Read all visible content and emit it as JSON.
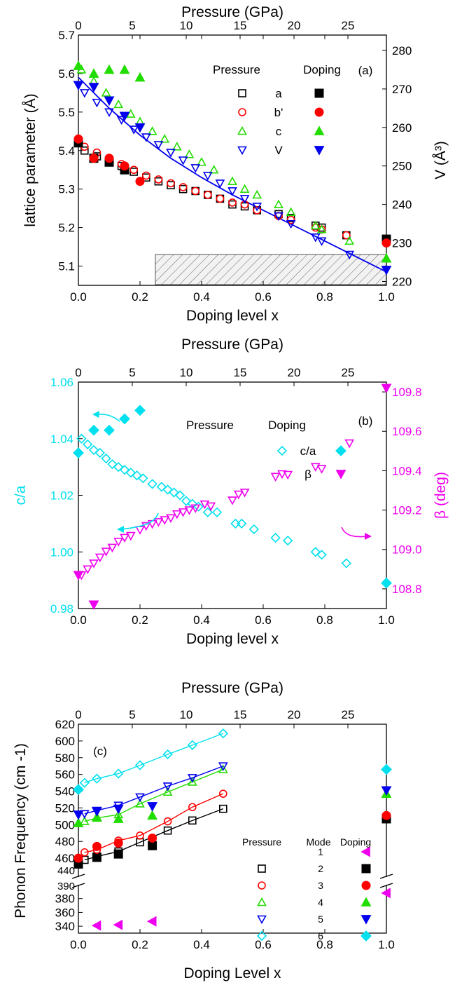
{
  "chart_data": [
    {
      "type": "scatter",
      "panel_label": "(a)",
      "xlabel": "Doping level x",
      "x2label": "Pressure (GPa)",
      "ylabel": "lattice parameter (Å)",
      "y2label": "V (Å³)",
      "xlim": [
        0,
        1.0
      ],
      "x2lim": [
        0,
        28.57
      ],
      "ylim": [
        5.05,
        5.7
      ],
      "y2lim": [
        219,
        284
      ],
      "xticks": [
        "0.0",
        "0.2",
        "0.4",
        "0.6",
        "0.8",
        "1.0"
      ],
      "x2ticks": [
        "0",
        "5",
        "10",
        "15",
        "20",
        "25"
      ],
      "yticks": [
        "5.1",
        "5.2",
        "5.3",
        "5.4",
        "5.5",
        "5.6",
        "5.7"
      ],
      "y2ticks": [
        "220",
        "230",
        "240",
        "250",
        "260",
        "270",
        "280"
      ],
      "legend": {
        "header_pressure": "Pressure",
        "header_doping": "Doping",
        "labels": [
          "a",
          "b'",
          "c",
          "V"
        ]
      },
      "hatched_region_x": [
        0.25,
        1.0
      ],
      "series": [
        {
          "name": "a",
          "method": "Pressure",
          "marker": "square",
          "filled": false,
          "color": "#000000",
          "axis": "left",
          "x": [
            0.02,
            0.06,
            0.1,
            0.14,
            0.18,
            0.22,
            0.26,
            0.3,
            0.34,
            0.38,
            0.42,
            0.46,
            0.5,
            0.54,
            0.58,
            0.65,
            0.69,
            0.77,
            0.79,
            0.87
          ],
          "y": [
            5.4,
            5.385,
            5.37,
            5.36,
            5.345,
            5.33,
            5.32,
            5.31,
            5.3,
            5.295,
            5.285,
            5.275,
            5.26,
            5.255,
            5.245,
            5.235,
            5.225,
            5.205,
            5.2,
            5.18
          ]
        },
        {
          "name": "b'",
          "method": "Pressure",
          "marker": "circle",
          "filled": false,
          "color": "#ff0000",
          "axis": "left",
          "x": [
            0.02,
            0.06,
            0.1,
            0.14,
            0.18,
            0.22,
            0.26,
            0.3,
            0.34,
            0.38,
            0.42,
            0.46,
            0.5,
            0.54,
            0.58,
            0.65,
            0.69,
            0.77,
            0.79,
            0.87
          ],
          "y": [
            5.41,
            5.395,
            5.38,
            5.365,
            5.35,
            5.335,
            5.325,
            5.315,
            5.305,
            5.295,
            5.285,
            5.275,
            5.265,
            5.26,
            5.245,
            5.23,
            5.22,
            5.2,
            5.195,
            5.18
          ]
        },
        {
          "name": "c",
          "method": "Pressure",
          "marker": "triangle-up",
          "filled": false,
          "color": "#22dd00",
          "axis": "left",
          "x": [
            0.01,
            0.05,
            0.09,
            0.13,
            0.17,
            0.2,
            0.24,
            0.28,
            0.32,
            0.36,
            0.4,
            0.44,
            0.5,
            0.54,
            0.58,
            0.65,
            0.69,
            0.77,
            0.79,
            0.88
          ],
          "y": [
            5.61,
            5.58,
            5.55,
            5.52,
            5.495,
            5.475,
            5.45,
            5.43,
            5.41,
            5.39,
            5.37,
            5.35,
            5.32,
            5.3,
            5.285,
            5.26,
            5.24,
            5.205,
            5.195,
            5.165
          ]
        },
        {
          "name": "V",
          "method": "Pressure",
          "marker": "triangle-down",
          "filled": false,
          "color": "#0000ee",
          "axis": "right",
          "x": [
            0.02,
            0.06,
            0.1,
            0.14,
            0.18,
            0.22,
            0.26,
            0.3,
            0.34,
            0.38,
            0.42,
            0.46,
            0.5,
            0.54,
            0.58,
            0.65,
            0.69,
            0.77,
            0.79,
            0.88
          ],
          "y": [
            269,
            266.5,
            264,
            262,
            259.5,
            257.5,
            255.5,
            253.5,
            251.5,
            249.5,
            247.5,
            245.5,
            243.5,
            241.5,
            239.5,
            237,
            235,
            231.5,
            230.5,
            227
          ]
        },
        {
          "name": "a",
          "method": "Doping",
          "marker": "square",
          "filled": true,
          "color": "#000000",
          "axis": "left",
          "x": [
            0.0,
            0.05,
            0.1,
            0.15,
            1.0
          ],
          "y": [
            5.42,
            5.38,
            5.37,
            5.35,
            5.17
          ]
        },
        {
          "name": "b'",
          "method": "Doping",
          "marker": "circle",
          "filled": true,
          "color": "#ff0000",
          "axis": "left",
          "x": [
            0.0,
            0.05,
            0.1,
            0.15,
            0.2,
            1.0
          ],
          "y": [
            5.43,
            5.38,
            5.38,
            5.36,
            5.32,
            5.16
          ]
        },
        {
          "name": "c",
          "method": "Doping",
          "marker": "triangle-up",
          "filled": true,
          "color": "#22dd00",
          "axis": "left",
          "x": [
            0.0,
            0.05,
            0.1,
            0.15,
            0.2,
            1.0
          ],
          "y": [
            5.62,
            5.6,
            5.61,
            5.61,
            5.59,
            5.12
          ]
        },
        {
          "name": "V",
          "method": "Doping",
          "marker": "triangle-down",
          "filled": true,
          "color": "#0000ee",
          "axis": "right",
          "x": [
            0.0,
            0.05,
            0.1,
            0.15,
            0.2,
            1.0
          ],
          "y": [
            271,
            270.5,
            267,
            263,
            260,
            223
          ]
        }
      ],
      "fit_line": {
        "color": "#0000ee",
        "axis": "right",
        "x": [
          0.0,
          0.1,
          0.2,
          0.3,
          0.4,
          0.5,
          0.6,
          0.7,
          0.8,
          0.9,
          1.0
        ],
        "y": [
          273,
          265,
          258,
          252,
          247,
          242.5,
          238.5,
          234.5,
          230.5,
          226.5,
          222.5
        ]
      },
      "legend_placement": "top-right",
      "grid": false
    },
    {
      "type": "scatter",
      "panel_label": "(b)",
      "xlabel": "Doping level x",
      "x2label": "Pressure (GPa)",
      "ylabel": "c/a",
      "y2label": "β (deg)",
      "xlim": [
        0,
        1.0
      ],
      "x2lim": [
        0,
        28.57
      ],
      "ylim": [
        0.98,
        1.06
      ],
      "y2lim": [
        108.7,
        109.85
      ],
      "xticks": [
        "0.0",
        "0.2",
        "0.4",
        "0.6",
        "0.8",
        "1.0"
      ],
      "x2ticks": [
        "0",
        "5",
        "10",
        "15",
        "20",
        "25"
      ],
      "yticks": [
        "0.98",
        "1.00",
        "1.02",
        "1.04",
        "1.06"
      ],
      "y2ticks": [
        "108.8",
        "109.0",
        "109.2",
        "109.4",
        "109.6",
        "109.8"
      ],
      "legend": {
        "header_pressure": "Pressure",
        "header_doping": "Doping",
        "labels": [
          "c/a",
          "β"
        ]
      },
      "series": [
        {
          "name": "c/a",
          "method": "Pressure",
          "marker": "diamond",
          "filled": false,
          "color": "#00e0ee",
          "axis": "left",
          "x": [
            0.01,
            0.03,
            0.05,
            0.07,
            0.09,
            0.11,
            0.13,
            0.15,
            0.17,
            0.19,
            0.21,
            0.24,
            0.27,
            0.29,
            0.31,
            0.33,
            0.35,
            0.37,
            0.39,
            0.42,
            0.45,
            0.51,
            0.53,
            0.57,
            0.64,
            0.68,
            0.77,
            0.79,
            0.87
          ],
          "y": [
            1.04,
            1.038,
            1.036,
            1.035,
            1.033,
            1.031,
            1.03,
            1.029,
            1.028,
            1.027,
            1.026,
            1.024,
            1.023,
            1.022,
            1.021,
            1.02,
            1.018,
            1.017,
            1.016,
            1.014,
            1.014,
            1.01,
            1.01,
            1.008,
            1.005,
            1.004,
            1.0,
            0.999,
            0.996
          ]
        },
        {
          "name": "β",
          "method": "Pressure",
          "marker": "triangle-down",
          "filled": false,
          "color": "#ee00ee",
          "axis": "right",
          "x": [
            0.01,
            0.03,
            0.05,
            0.07,
            0.09,
            0.11,
            0.13,
            0.15,
            0.17,
            0.2,
            0.22,
            0.24,
            0.26,
            0.28,
            0.3,
            0.32,
            0.34,
            0.36,
            0.38,
            0.41,
            0.43,
            0.5,
            0.52,
            0.54,
            0.64,
            0.68,
            0.77,
            0.79,
            0.88
          ],
          "y": [
            108.87,
            108.9,
            108.93,
            108.96,
            108.99,
            109.01,
            109.04,
            109.06,
            109.07,
            109.1,
            109.12,
            109.13,
            109.14,
            109.15,
            109.16,
            109.18,
            109.19,
            109.2,
            109.21,
            109.23,
            109.22,
            109.25,
            109.28,
            109.29,
            109.37,
            109.38,
            109.42,
            109.41,
            109.54
          ]
        },
        {
          "name": "c/a",
          "method": "Doping",
          "marker": "diamond",
          "filled": true,
          "color": "#00e0ee",
          "axis": "left",
          "x": [
            0.0,
            0.05,
            0.1,
            0.15,
            0.2,
            1.0
          ],
          "y": [
            1.035,
            1.043,
            1.043,
            1.047,
            1.05,
            0.989
          ]
        },
        {
          "name": "β",
          "method": "Doping",
          "marker": "triangle-down",
          "filled": true,
          "color": "#ee00ee",
          "axis": "right",
          "x": [
            0.0,
            0.05,
            1.0
          ],
          "y": [
            108.87,
            108.72,
            109.82
          ]
        }
      ],
      "legend_placement": "top-right",
      "grid": false
    },
    {
      "type": "line",
      "panel_label": "(c)",
      "xlabel": "Doping Level x",
      "x2label": "Pressure (GPa)",
      "ylabel": "Phonon Frequency (cm -1)",
      "xlim": [
        0,
        1.0
      ],
      "x2lim": [
        0,
        28.57
      ],
      "ylim_upper": [
        440,
        620
      ],
      "ylim_lower": [
        330,
        400
      ],
      "xticks": [
        "0.0",
        "0.2",
        "0.4",
        "0.6",
        "0.8",
        "1.0"
      ],
      "x2ticks": [
        "0",
        "5",
        "10",
        "15",
        "20",
        "25"
      ],
      "yticks_upper": [
        "460",
        "480",
        "500",
        "520",
        "540",
        "560",
        "580",
        "600",
        "620"
      ],
      "yticks_lower": [
        "340",
        "360",
        "380"
      ],
      "ytick_break": [
        "440",
        "390"
      ],
      "legend": {
        "header_pressure": "Pressure",
        "header_mode": "Mode",
        "header_doping": "Doping",
        "modes": [
          "1",
          "2",
          "3",
          "4",
          "5",
          "6"
        ]
      },
      "series": [
        {
          "name": "1",
          "marker": "triangle-left",
          "color": "#ee00ee",
          "pressure_x": [],
          "pressure_y": [],
          "doping_x": [
            0.06,
            0.13,
            0.24,
            1.0
          ],
          "doping_y": [
            341,
            342,
            347,
            388
          ]
        },
        {
          "name": "2",
          "marker": "square",
          "color": "#000000",
          "pressure_x": [
            0.02,
            0.06,
            0.13,
            0.2,
            0.29,
            0.37,
            0.47
          ],
          "pressure_y": [
            458,
            462,
            468,
            479,
            493,
            505,
            519
          ],
          "doping_x": [
            0.0,
            0.06,
            0.13,
            0.24,
            1.0
          ],
          "doping_y": [
            453,
            461,
            465,
            475,
            507
          ]
        },
        {
          "name": "3",
          "marker": "circle",
          "color": "#ff0000",
          "pressure_x": [
            0.02,
            0.06,
            0.13,
            0.2,
            0.29,
            0.37,
            0.47
          ],
          "pressure_y": [
            467,
            470,
            481,
            487,
            504,
            521,
            537
          ],
          "doping_x": [
            0.0,
            0.06,
            0.13,
            0.24,
            1.0
          ],
          "doping_y": [
            460,
            474,
            478,
            484,
            511
          ]
        },
        {
          "name": "4",
          "marker": "triangle-up",
          "color": "#22dd00",
          "pressure_x": [
            0.02,
            0.06,
            0.13,
            0.2,
            0.29,
            0.37,
            0.47
          ],
          "pressure_y": [
            504,
            508,
            512,
            525,
            539,
            551,
            566
          ],
          "doping_x": [
            0.0,
            0.06,
            0.13,
            0.24,
            1.0
          ],
          "doping_y": [
            502,
            509,
            507,
            511,
            537
          ]
        },
        {
          "name": "5",
          "marker": "triangle-down",
          "color": "#0000ee",
          "pressure_x": [
            0.02,
            0.06,
            0.13,
            0.2,
            0.29,
            0.37,
            0.47
          ],
          "pressure_y": [
            513,
            517,
            523,
            533,
            546,
            556,
            570
          ],
          "doping_x": [
            0.0,
            0.06,
            0.13,
            0.24,
            1.0
          ],
          "doping_y": [
            512,
            516,
            519,
            522,
            541
          ]
        },
        {
          "name": "6",
          "marker": "diamond",
          "color": "#00e0ee",
          "pressure_x": [
            0.02,
            0.06,
            0.13,
            0.2,
            0.29,
            0.37,
            0.47
          ],
          "pressure_y": [
            550,
            555,
            561,
            571,
            584,
            595,
            609
          ],
          "doping_x": [
            0.0,
            1.0
          ],
          "doping_y": [
            542,
            566
          ]
        }
      ],
      "legend_placement": "center-right",
      "grid": false
    }
  ]
}
